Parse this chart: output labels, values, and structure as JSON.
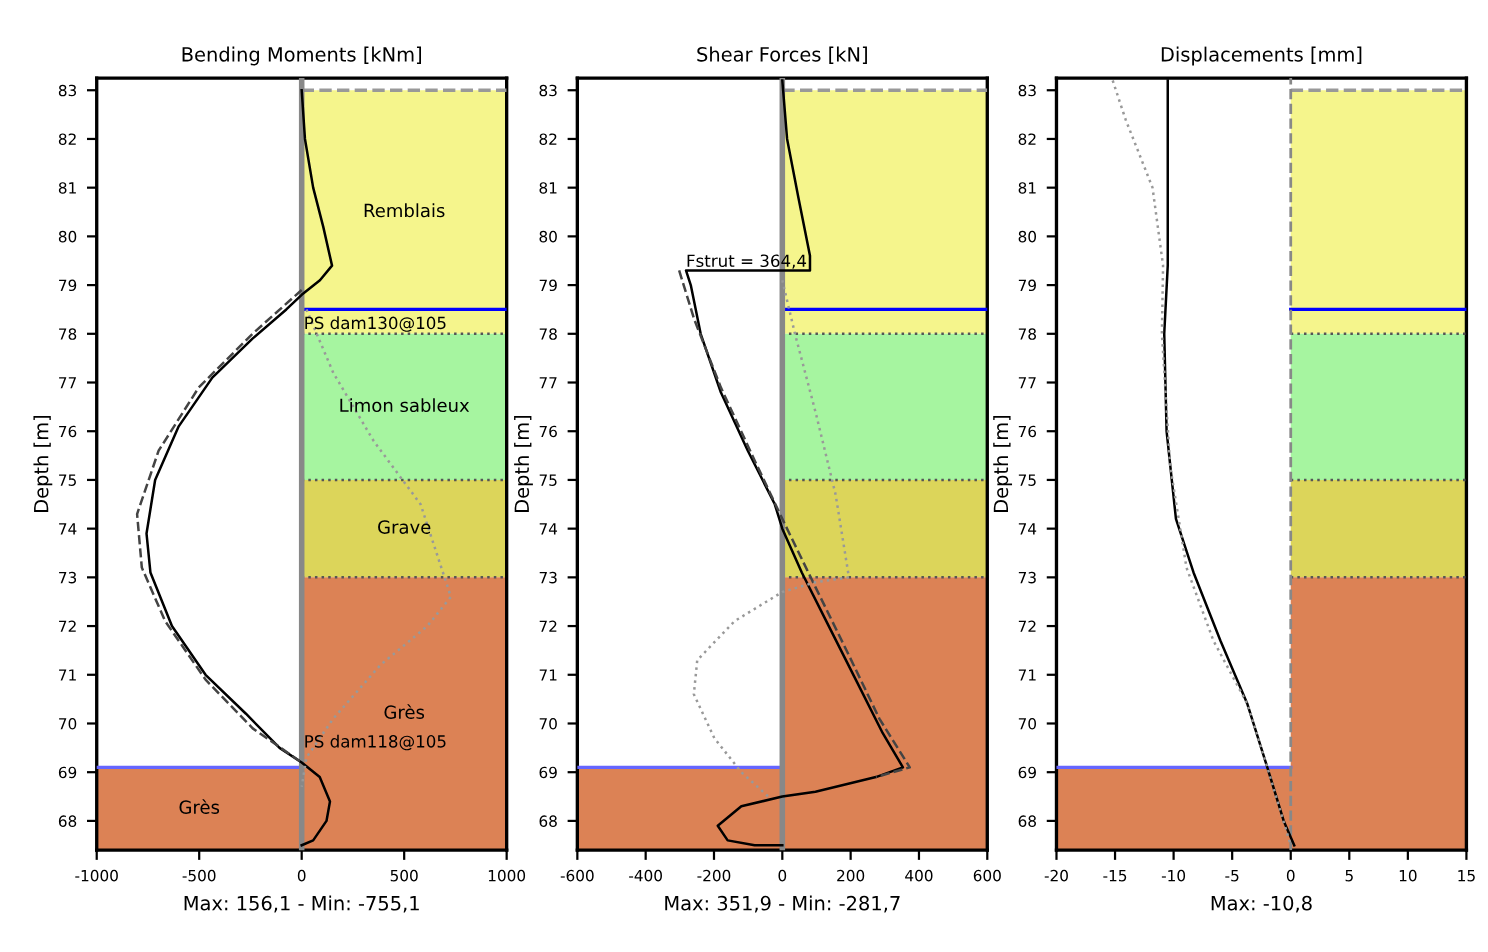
{
  "chart_data": [
    {
      "type": "line",
      "title": "Bending Moments [kNm]",
      "xlabel": "Max: 156,1 - Min: -755,1",
      "ylabel": "Depth [m]",
      "xlim": [
        -1000,
        1000
      ],
      "xticks": [
        -1000,
        -500,
        0,
        500,
        1000
      ],
      "ylim": [
        67.4,
        83.25
      ],
      "yticks": [
        68,
        69,
        70,
        71,
        72,
        73,
        74,
        75,
        76,
        77,
        78,
        79,
        80,
        81,
        82,
        83
      ],
      "grid": false,
      "legend": false,
      "orientation": "horizontal",
      "series": [
        {
          "color": "#000000",
          "line_style": "solid",
          "values": [
            0,
            16,
            56,
            105,
            148,
            89,
            0,
            -75,
            -240,
            -436,
            -600,
            -715,
            -757,
            -738,
            -633,
            -469,
            -272,
            -108,
            0,
            88,
            138,
            121,
            56,
            0
          ],
          "x": [
            83,
            82.0,
            81.0,
            80.2,
            79.4,
            79.1,
            78.8,
            78.5,
            77.9,
            77.1,
            76.1,
            75.0,
            73.9,
            73.1,
            72.0,
            71.0,
            70.2,
            69.5,
            69.2,
            68.9,
            68.4,
            68.0,
            67.6,
            67.5
          ]
        },
        {
          "color": "#444444",
          "line_style": "dashed",
          "values": [
            0,
            -240,
            -502,
            -698,
            -803,
            -780,
            -666,
            -469,
            -239,
            0
          ],
          "x": [
            78.9,
            78.0,
            76.9,
            75.6,
            74.3,
            73.2,
            72.1,
            70.9,
            69.9,
            69.2
          ]
        },
        {
          "color": "#999999",
          "line_style": "dotted",
          "values": [
            23,
            154,
            351,
            580,
            728,
            613,
            384,
            154,
            23,
            0
          ],
          "x": [
            78.5,
            77.2,
            75.8,
            74.5,
            72.6,
            72.0,
            71.2,
            70.1,
            69.3,
            68.7
          ]
        }
      ],
      "bands": [
        {
          "axis": "y",
          "from": 78.0,
          "to": 83.0,
          "label": "Remblais",
          "color": "#f5f58c"
        },
        {
          "axis": "y",
          "from": 75.0,
          "to": 78.0,
          "label": "Limon sableux",
          "color": "#a6f5a0"
        },
        {
          "axis": "y",
          "from": 73.0,
          "to": 75.0,
          "label": "Grave",
          "color": "#dcd55a"
        },
        {
          "axis": "y",
          "from": 67.4,
          "to": 73.0,
          "label": "Grès",
          "color": "#dc8255"
        },
        {
          "axis": "y",
          "from": 67.4,
          "to": 69.1,
          "label": "Grès",
          "color": "#dc8255"
        }
      ],
      "ref_lines": [
        {
          "axis": "y",
          "value": 78.5,
          "color": "#0000ff",
          "line_style": "solid"
        },
        {
          "axis": "y",
          "value": 69.1,
          "color": "#6666ff",
          "line_style": "solid"
        },
        {
          "axis": "y",
          "value": 83.0,
          "color": "#999999",
          "line_style": "dashed"
        },
        {
          "axis": "y",
          "value": 78.0,
          "color": "#555555",
          "line_style": "dotted"
        },
        {
          "axis": "y",
          "value": 75.0,
          "color": "#555555",
          "line_style": "dotted"
        },
        {
          "axis": "y",
          "value": 73.0,
          "color": "#555555",
          "line_style": "dotted"
        },
        {
          "axis": "x",
          "value": 0,
          "color": "#888888",
          "line_style": "solid"
        }
      ],
      "annotations": [
        "PS dam130@105",
        "PS dam118@105"
      ]
    },
    {
      "type": "line",
      "title": "Shear Forces [kN]",
      "xlabel": "Max: 351,9 - Min: -281,7",
      "ylabel": "Depth [m]",
      "xlim": [
        -600,
        600
      ],
      "xticks": [
        -600,
        -400,
        -200,
        0,
        200,
        400,
        600
      ],
      "ylim": [
        67.4,
        83.25
      ],
      "yticks": [
        68,
        69,
        70,
        71,
        72,
        73,
        74,
        75,
        76,
        77,
        78,
        79,
        80,
        81,
        82,
        83
      ],
      "grid": false,
      "legend": false,
      "orientation": "horizontal",
      "series": [
        {
          "color": "#000000",
          "line_style": "solid",
          "values": [
            0,
            14,
            47,
            81,
            81,
            -282,
            -268,
            -239,
            -180,
            -101,
            -22,
            0,
            57,
            136,
            215,
            294,
            353,
            274,
            97,
            0,
            -120,
            -189,
            -160,
            -81,
            0
          ],
          "x": [
            83.2,
            82.0,
            80.8,
            79.6,
            79.3,
            79.3,
            79.0,
            78.0,
            76.8,
            75.6,
            74.5,
            74.0,
            73.1,
            72.0,
            70.9,
            69.8,
            69.1,
            68.9,
            68.6,
            68.5,
            68.3,
            67.9,
            67.6,
            67.5,
            67.5
          ]
        },
        {
          "color": "#444444",
          "line_style": "dashed",
          "values": [
            -302,
            -258,
            -180,
            -81,
            0,
            97,
            195,
            284,
            373,
            274
          ],
          "x": [
            79.3,
            78.3,
            76.9,
            75.4,
            74.2,
            72.8,
            71.4,
            70.1,
            69.1,
            68.9
          ]
        },
        {
          "color": "#999999",
          "line_style": "dotted",
          "values": [
            0,
            37,
            97,
            156,
            195,
            97,
            0,
            -140,
            -249,
            -259,
            -199,
            -120,
            -41
          ],
          "x": [
            79.1,
            78.0,
            76.4,
            74.7,
            73.0,
            72.9,
            72.7,
            72.1,
            71.3,
            70.6,
            69.7,
            69.0,
            68.5
          ]
        }
      ],
      "bands": [
        {
          "axis": "y",
          "from": 78.0,
          "to": 83.0,
          "color": "#f5f58c"
        },
        {
          "axis": "y",
          "from": 75.0,
          "to": 78.0,
          "color": "#a6f5a0"
        },
        {
          "axis": "y",
          "from": 73.0,
          "to": 75.0,
          "color": "#dcd55a"
        },
        {
          "axis": "y",
          "from": 67.4,
          "to": 73.0,
          "color": "#dc8255"
        },
        {
          "axis": "y",
          "from": 67.4,
          "to": 69.1,
          "color": "#dc8255"
        }
      ],
      "ref_lines": [
        {
          "axis": "y",
          "value": 78.5,
          "color": "#0000ff",
          "line_style": "solid"
        },
        {
          "axis": "y",
          "value": 69.1,
          "color": "#6666ff",
          "line_style": "solid"
        },
        {
          "axis": "y",
          "value": 83.0,
          "color": "#999999",
          "line_style": "dashed"
        },
        {
          "axis": "y",
          "value": 78.0,
          "color": "#555555",
          "line_style": "dotted"
        },
        {
          "axis": "y",
          "value": 75.0,
          "color": "#555555",
          "line_style": "dotted"
        },
        {
          "axis": "y",
          "value": 73.0,
          "color": "#555555",
          "line_style": "dotted"
        },
        {
          "axis": "x",
          "value": 0,
          "color": "#888888",
          "line_style": "solid"
        }
      ],
      "annotations": [
        "Fstrut = 364,4"
      ]
    },
    {
      "type": "line",
      "title": "Displacements [mm]",
      "xlabel": "Max: -10,8",
      "ylabel": "Depth [m]",
      "xlim": [
        -20,
        15
      ],
      "xticks": [
        -20,
        -15,
        -10,
        -5,
        0,
        5,
        10,
        15
      ],
      "ylim": [
        67.4,
        83.25
      ],
      "yticks": [
        68,
        69,
        70,
        71,
        72,
        73,
        74,
        75,
        76,
        77,
        78,
        79,
        80,
        81,
        82,
        83
      ],
      "grid": false,
      "legend": false,
      "orientation": "horizontal",
      "series": [
        {
          "color": "#000000",
          "line_style": "solid",
          "values": [
            -10.5,
            -10.5,
            -10.8,
            -10.6,
            -9.8,
            -8.3,
            -6.0,
            -3.7,
            -2.0,
            -0.6,
            0.3
          ],
          "x": [
            83.2,
            79.4,
            78.0,
            76.0,
            74.2,
            73.1,
            71.7,
            70.4,
            69.1,
            68.0,
            67.5
          ]
        },
        {
          "color": "#999999",
          "line_style": "dotted",
          "values": [
            -15.2,
            -14.1,
            -11.8,
            -10.9,
            -11.0,
            -10.3,
            -8.9,
            -6.6,
            -3.7,
            -2.0,
            0
          ],
          "x": [
            83.2,
            82.4,
            81.0,
            79.4,
            78.0,
            75.3,
            73.2,
            71.7,
            70.4,
            69.1,
            67.5
          ]
        }
      ],
      "bands": [
        {
          "axis": "y",
          "from": 78.0,
          "to": 83.0,
          "color": "#f5f58c"
        },
        {
          "axis": "y",
          "from": 75.0,
          "to": 78.0,
          "color": "#a6f5a0"
        },
        {
          "axis": "y",
          "from": 73.0,
          "to": 75.0,
          "color": "#dcd55a"
        },
        {
          "axis": "y",
          "from": 67.4,
          "to": 73.0,
          "color": "#dc8255"
        },
        {
          "axis": "y",
          "from": 67.4,
          "to": 69.1,
          "color": "#dc8255"
        }
      ],
      "ref_lines": [
        {
          "axis": "y",
          "value": 78.5,
          "color": "#0000ff",
          "line_style": "solid"
        },
        {
          "axis": "y",
          "value": 69.1,
          "color": "#6666ff",
          "line_style": "solid"
        },
        {
          "axis": "y",
          "value": 83.0,
          "color": "#999999",
          "line_style": "dashed"
        },
        {
          "axis": "y",
          "value": 78.0,
          "color": "#555555",
          "line_style": "dotted"
        },
        {
          "axis": "y",
          "value": 75.0,
          "color": "#555555",
          "line_style": "dotted"
        },
        {
          "axis": "y",
          "value": 73.0,
          "color": "#555555",
          "line_style": "dotted"
        },
        {
          "axis": "x",
          "value": 0,
          "color": "#888888",
          "line_style": "dashed"
        }
      ]
    }
  ]
}
